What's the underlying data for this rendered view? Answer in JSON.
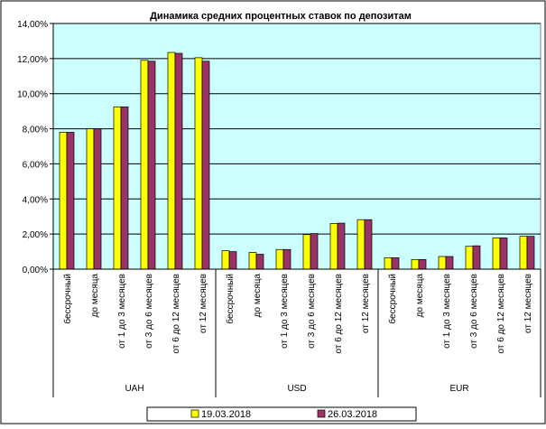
{
  "chart_data": {
    "type": "bar",
    "title": "Динамика средних процентных ставок по депозитам",
    "ylim": [
      0,
      14
    ],
    "yticks": [
      0,
      2,
      4,
      6,
      8,
      10,
      12,
      14
    ],
    "ytick_labels": [
      "0,00%",
      "2,00%",
      "4,00%",
      "6,00%",
      "8,00%",
      "10,00%",
      "12,00%",
      "14,00%"
    ],
    "groups": [
      "UAH",
      "USD",
      "EUR"
    ],
    "categories": [
      "бессрочный",
      "до месяца",
      "от 1 до 3 месяцев",
      "от 3 до 6 месяцев",
      "от 6 до 12 месяцев",
      "от 12 месяцев"
    ],
    "series": [
      {
        "name": "19.03.2018",
        "color": "#ffff00",
        "values": [
          [
            7.8,
            8.0,
            9.25,
            11.9,
            12.35,
            12.05
          ],
          [
            1.05,
            0.95,
            1.12,
            1.97,
            2.6,
            2.82
          ],
          [
            0.65,
            0.55,
            0.72,
            1.3,
            1.78,
            1.87
          ]
        ]
      },
      {
        "name": "26.03.2018",
        "color": "#993366",
        "values": [
          [
            7.8,
            8.0,
            9.25,
            11.85,
            12.3,
            11.85
          ],
          [
            1.0,
            0.85,
            1.12,
            2.03,
            2.62,
            2.82
          ],
          [
            0.65,
            0.55,
            0.72,
            1.33,
            1.78,
            1.87
          ]
        ]
      }
    ],
    "plot_background": "#ccffff",
    "grid": true,
    "legend_position": "bottom"
  }
}
